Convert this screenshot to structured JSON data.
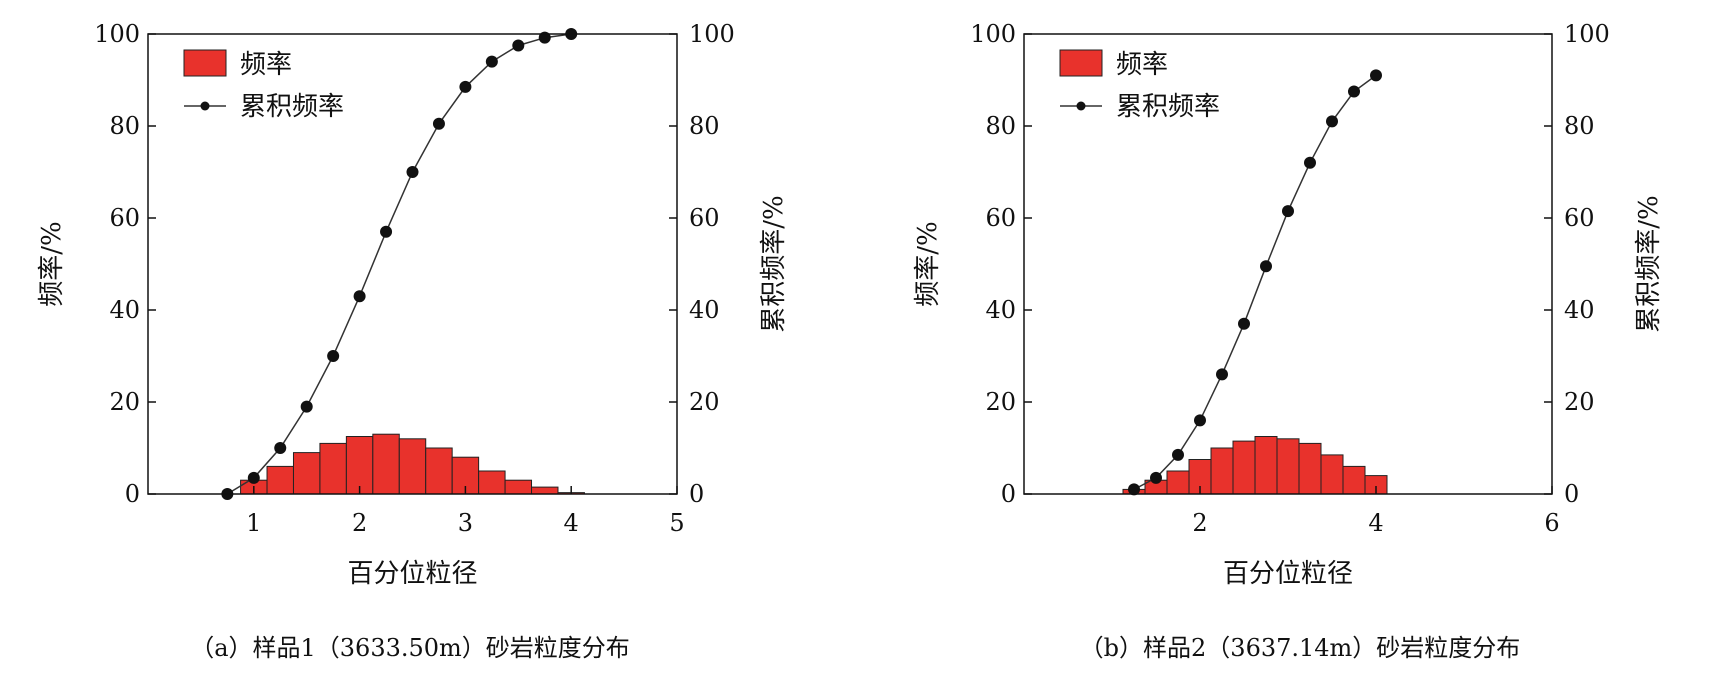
{
  "chart_data": [
    {
      "type": "bar",
      "panel": "a",
      "caption": "（a）样品1（3633.50m）砂岩粒度分布",
      "xlabel": "百分位粒径",
      "ylabel_left": "频率/%",
      "ylabel_right": "累积频率/%",
      "xlim": [
        0,
        5
      ],
      "xticks": [
        1,
        2,
        3,
        4,
        5
      ],
      "ylim": [
        0,
        100
      ],
      "yticks": [
        0,
        20,
        40,
        60,
        80,
        100
      ],
      "legend": {
        "placement": "top-left",
        "bar_label": "频率",
        "line_label": "累积频率"
      },
      "bar_color": "#e8322c",
      "bar_width": 0.25,
      "histogram": {
        "x": [
          1.0,
          1.25,
          1.5,
          1.75,
          2.0,
          2.25,
          2.5,
          2.75,
          3.0,
          3.25,
          3.5,
          3.75,
          4.0
        ],
        "values": [
          3,
          6,
          9,
          11,
          12.5,
          13,
          12,
          10,
          8,
          5,
          3,
          1.5,
          0.3
        ]
      },
      "cumulative": {
        "x": [
          0.75,
          1.0,
          1.25,
          1.5,
          1.75,
          2.0,
          2.25,
          2.5,
          2.75,
          3.0,
          3.25,
          3.5,
          3.75,
          4.0
        ],
        "values": [
          0,
          3.5,
          10,
          19,
          30,
          43,
          57,
          70,
          80.5,
          88.5,
          94,
          97.5,
          99.2,
          100
        ]
      }
    },
    {
      "type": "bar",
      "panel": "b",
      "caption": "（b）样品2（3637.14m）砂岩粒度分布",
      "xlabel": "百分位粒径",
      "ylabel_left": "频率/%",
      "ylabel_right": "累积频率/%",
      "xlim": [
        0,
        6
      ],
      "xticks": [
        2,
        4,
        6
      ],
      "ylim": [
        0,
        100
      ],
      "yticks": [
        0,
        20,
        40,
        60,
        80,
        100
      ],
      "legend": {
        "placement": "top-left",
        "bar_label": "频率",
        "line_label": "累积频率"
      },
      "bar_color": "#e8322c",
      "bar_width": 0.25,
      "histogram": {
        "x": [
          1.25,
          1.5,
          1.75,
          2.0,
          2.25,
          2.5,
          2.75,
          3.0,
          3.25,
          3.5,
          3.75,
          4.0
        ],
        "values": [
          1,
          3,
          5,
          7.5,
          10,
          11.5,
          12.5,
          12,
          11,
          8.5,
          6,
          4
        ]
      },
      "cumulative": {
        "x": [
          1.25,
          1.5,
          1.75,
          2.0,
          2.25,
          2.5,
          2.75,
          3.0,
          3.25,
          3.5,
          3.75,
          4.0
        ],
        "values": [
          1,
          3.5,
          8.5,
          16,
          26,
          37,
          49.5,
          61.5,
          72,
          81,
          87.5,
          91
        ]
      }
    }
  ]
}
